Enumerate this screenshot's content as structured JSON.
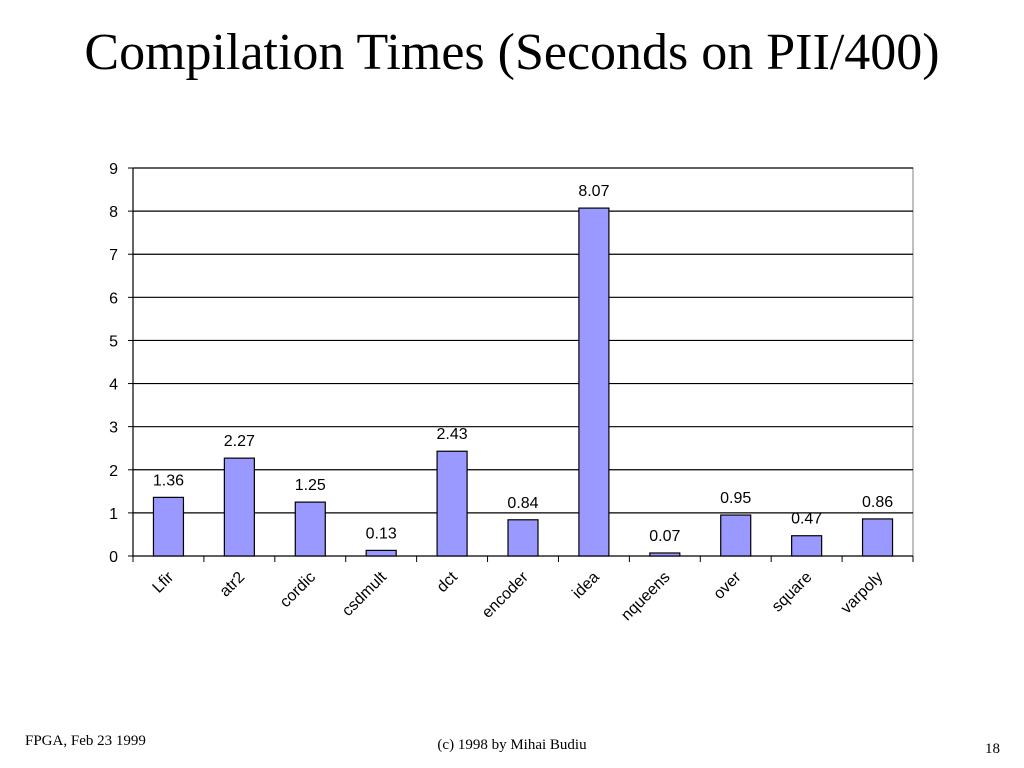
{
  "slide": {
    "title": "Compilation Times (Seconds on PII/400)"
  },
  "footer": {
    "left": "FPGA, Feb 23 1999",
    "center": "(c) 1998 by Mihai Budiu",
    "right": "18"
  },
  "colors": {
    "bar_fill": "#9999ff",
    "bar_stroke": "#000000",
    "grid": "#000000",
    "plot_border": "#808080"
  },
  "chart_data": {
    "type": "bar",
    "title": "",
    "xlabel": "",
    "ylabel": "",
    "categories": [
      "Lfir",
      "atr2",
      "cordic",
      "csdmult",
      "dct",
      "encoder",
      "idea",
      "nqueens",
      "over",
      "square",
      "varpoly"
    ],
    "values": [
      1.36,
      2.27,
      1.25,
      0.13,
      2.43,
      0.84,
      8.07,
      0.07,
      0.95,
      0.47,
      0.86
    ],
    "data_labels": [
      "1.36",
      "2.27",
      "1.25",
      "0.13",
      "2.43",
      "0.84",
      "8.07",
      "0.07",
      "0.95",
      "0.47",
      "0.86"
    ],
    "ylim": [
      0,
      9
    ],
    "yticks": [
      "0",
      "1",
      "2",
      "3",
      "4",
      "5",
      "6",
      "7",
      "8",
      "9"
    ],
    "grid": true,
    "legend": "none"
  }
}
